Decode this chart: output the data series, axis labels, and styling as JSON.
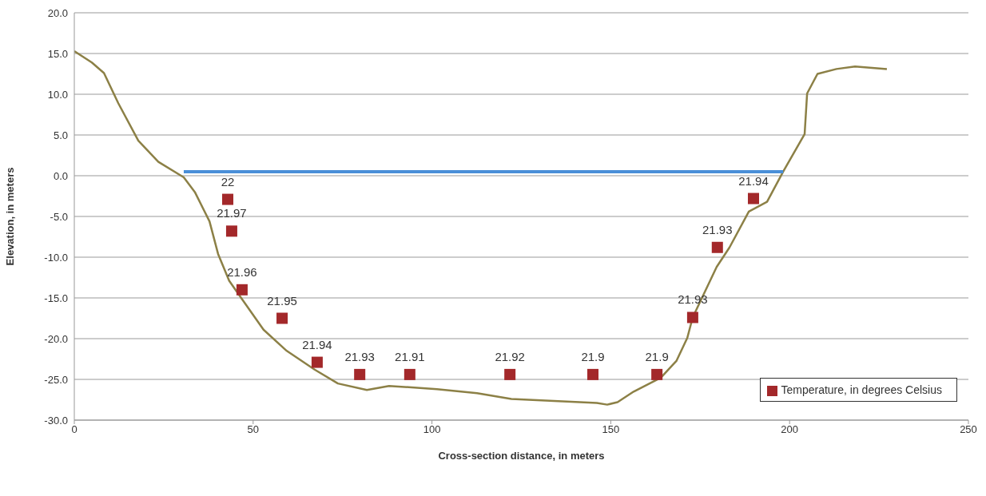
{
  "chart_data": {
    "type": "line",
    "xlabel": "Cross-section distance, in meters",
    "ylabel": "Elevation, in meters",
    "xlim": [
      0,
      250
    ],
    "xticks": [
      0,
      50,
      100,
      150,
      200,
      250
    ],
    "ylim": [
      -30,
      20
    ],
    "yticks": [
      {
        "value": -30,
        "label": "-30.0"
      },
      {
        "value": -25,
        "label": "-25.0"
      },
      {
        "value": -20,
        "label": "-20.0"
      },
      {
        "value": -15,
        "label": "-15.0"
      },
      {
        "value": -10,
        "label": "-10.0"
      },
      {
        "value": -5,
        "label": "-5.0"
      },
      {
        "value": 0,
        "label": "0.0"
      },
      {
        "value": 5,
        "label": "5.0"
      },
      {
        "value": 10,
        "label": "10.0"
      },
      {
        "value": 15,
        "label": "15.0"
      },
      {
        "value": 20,
        "label": "20.0"
      }
    ],
    "grid": "y",
    "legend": "bottom right",
    "series": [
      {
        "color": "#8c8046",
        "x": [
          0,
          4.9,
          8.3,
          12.3,
          17.9,
          23.5,
          30.6,
          33.7,
          37.8,
          40.2,
          43.3,
          46.5,
          52.9,
          59.4,
          67.2,
          73.7,
          81.8,
          88.0,
          101.4,
          112.6,
          122.2,
          146.1,
          149,
          151.9,
          156.4,
          164,
          168.4,
          171.4,
          172.9,
          179.6,
          183.2,
          188.6,
          193.7,
          198.2,
          204.2,
          204.9,
          207.8,
          213.1,
          218.3,
          227.2
        ],
        "values": [
          15.3,
          13.9,
          12.6,
          8.9,
          4.3,
          1.7,
          -0.2,
          -2.0,
          -5.6,
          -9.6,
          -12.9,
          -14.9,
          -18.9,
          -21.5,
          -23.8,
          -25.5,
          -26.3,
          -25.8,
          -26.2,
          -26.7,
          -27.4,
          -27.9,
          -28.1,
          -27.8,
          -26.5,
          -24.8,
          -22.7,
          -19.9,
          -17.4,
          -11.2,
          -8.8,
          -4.4,
          -3.2,
          0.5,
          5.1,
          10.1,
          12.5,
          13.1,
          13.4,
          13.1
        ]
      },
      {
        "type": "line",
        "color": "#4a8fd8",
        "x": [
          30.6,
          198.2
        ],
        "values": [
          0.5,
          0.5
        ]
      },
      {
        "type": "scatter",
        "name": "Temperature, in degrees Celsius",
        "color": "#a3282a",
        "marker": "square",
        "x": [
          42.9,
          44.0,
          46.9,
          58.1,
          67.9,
          79.8,
          93.8,
          121.8,
          145.0,
          162.9,
          172.9,
          179.8,
          189.9
        ],
        "values": [
          -2.9,
          -6.8,
          -14.0,
          -17.5,
          -22.9,
          -24.4,
          -24.4,
          -24.4,
          -24.4,
          -24.4,
          -17.4,
          -8.8,
          -2.8
        ]
      }
    ],
    "annotations": [
      {
        "text": "22",
        "x": 42.9,
        "y": -2.9
      },
      {
        "text": "21.97",
        "x": 44.0,
        "y": -6.8
      },
      {
        "text": "21.96",
        "x": 46.9,
        "y": -14.0
      },
      {
        "text": "21.95",
        "x": 58.1,
        "y": -17.5
      },
      {
        "text": "21.94",
        "x": 67.9,
        "y": -22.9
      },
      {
        "text": "21.93",
        "x": 79.8,
        "y": -24.4
      },
      {
        "text": "21.91",
        "x": 93.8,
        "y": -24.4
      },
      {
        "text": "21.92",
        "x": 121.8,
        "y": -24.4
      },
      {
        "text": "21.9",
        "x": 145.0,
        "y": -24.4
      },
      {
        "text": "21.9",
        "x": 162.9,
        "y": -24.4
      },
      {
        "text": "21.93",
        "x": 172.9,
        "y": -17.4
      },
      {
        "text": "21.93",
        "x": 179.8,
        "y": -8.8
      },
      {
        "text": "21.94",
        "x": 189.9,
        "y": -2.8
      }
    ]
  }
}
